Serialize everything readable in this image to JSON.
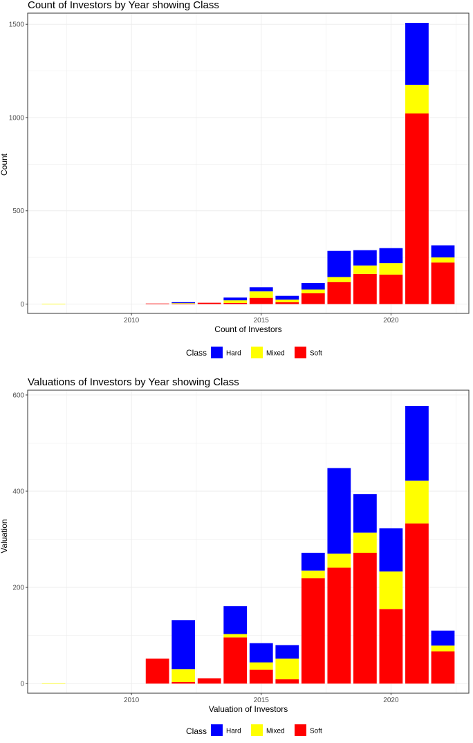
{
  "chart_data": [
    {
      "type": "bar",
      "stacked": true,
      "title": "Count of Investors by Year showing Class",
      "xlabel": "Count of Investors",
      "ylabel": "Count",
      "xlim": [
        2006,
        2023
      ],
      "ylim": [
        -50,
        1560
      ],
      "x_ticks": [
        2010,
        2015,
        2020
      ],
      "y_ticks": [
        0,
        500,
        1000,
        1500
      ],
      "grid": true,
      "legend": {
        "title": "Class",
        "position": "bottom"
      },
      "categories": [
        2007,
        2011,
        2012,
        2013,
        2014,
        2015,
        2016,
        2017,
        2018,
        2019,
        2020,
        2021,
        2022
      ],
      "series": [
        {
          "name": "Soft",
          "color": "#ff0000",
          "values": [
            0,
            3,
            3,
            7,
            6,
            33,
            10,
            58,
            118,
            162,
            158,
            1022,
            223
          ]
        },
        {
          "name": "Mixed",
          "color": "#ffff00",
          "values": [
            2,
            0,
            2,
            0,
            14,
            35,
            14,
            20,
            27,
            45,
            62,
            153,
            27
          ]
        },
        {
          "name": "Hard",
          "color": "#0000ff",
          "values": [
            0,
            0,
            5,
            0,
            15,
            22,
            20,
            35,
            140,
            82,
            80,
            333,
            65
          ]
        }
      ]
    },
    {
      "type": "bar",
      "stacked": true,
      "title": "Valuations of Investors by Year showing Class",
      "xlabel": "Valuation of Investors",
      "ylabel": "Valuation",
      "xlim": [
        2006,
        2023
      ],
      "ylim": [
        -20,
        610
      ],
      "x_ticks": [
        2010,
        2015,
        2020
      ],
      "y_ticks": [
        0,
        200,
        400,
        600
      ],
      "grid": true,
      "legend": {
        "title": "Class",
        "position": "bottom"
      },
      "categories": [
        2007,
        2011,
        2012,
        2013,
        2014,
        2015,
        2016,
        2017,
        2018,
        2019,
        2020,
        2021,
        2022
      ],
      "series": [
        {
          "name": "Soft",
          "color": "#ff0000",
          "values": [
            0,
            52,
            3,
            11,
            96,
            29,
            9,
            219,
            241,
            272,
            155,
            333,
            67
          ]
        },
        {
          "name": "Mixed",
          "color": "#ffff00",
          "values": [
            1,
            0,
            27,
            0,
            7,
            15,
            43,
            16,
            29,
            42,
            78,
            89,
            12
          ]
        },
        {
          "name": "Hard",
          "color": "#0000ff",
          "values": [
            0,
            0,
            102,
            0,
            58,
            40,
            28,
            37,
            178,
            80,
            90,
            155,
            31
          ]
        }
      ]
    }
  ]
}
